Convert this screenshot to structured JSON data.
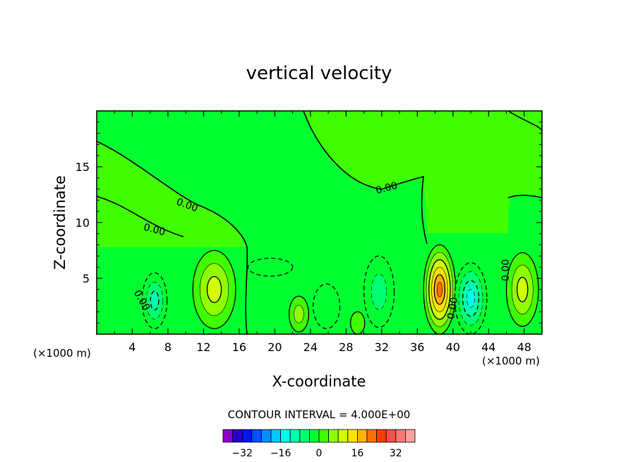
{
  "chart_data": {
    "type": "heatmap",
    "title": "vertical velocity",
    "xlabel": "X-coordinate",
    "ylabel": "Z-coordinate",
    "x_unit_left": "(×1000 m)",
    "x_unit_right": "(×1000 m)",
    "xlim": [
      0,
      50
    ],
    "ylim": [
      0,
      20
    ],
    "x_ticks": [
      "4",
      "8",
      "12",
      "16",
      "20",
      "24",
      "28",
      "32",
      "36",
      "40",
      "44",
      "48"
    ],
    "y_ticks": [
      "5",
      "10",
      "15"
    ],
    "contour_labels": [
      "0.00",
      "0.00",
      "0.00",
      "0.00",
      "0.00",
      "0.00"
    ],
    "contour_interval_text": "CONTOUR INTERVAL = 4.000E+00",
    "colorbar": {
      "colors": [
        "#8a00c8",
        "#2800c8",
        "#0014ff",
        "#0050ff",
        "#0090ff",
        "#00c8ff",
        "#00ffe8",
        "#00ffb0",
        "#00ff70",
        "#00ff30",
        "#40ff00",
        "#90ff00",
        "#d0ff00",
        "#ffe000",
        "#ffb000",
        "#ff7000",
        "#ff3c00",
        "#ff5050",
        "#ff7878",
        "#ffa0a0"
      ],
      "tick_labels": [
        "−32",
        "−16",
        "0",
        "16",
        "32"
      ],
      "tick_values": [
        -32,
        -16,
        0,
        16,
        32
      ],
      "range": [
        -40,
        40
      ]
    },
    "cells": [
      {
        "x": 6.5,
        "z": 3.0,
        "rx": 1.4,
        "rz": 2.5,
        "value": -10
      },
      {
        "x": 13.2,
        "z": 4.0,
        "rx": 2.4,
        "rz": 3.5,
        "value": 12
      },
      {
        "x": 19.5,
        "z": 6.0,
        "rx": 2.5,
        "rz": 0.8,
        "value": -3
      },
      {
        "x": 22.7,
        "z": 1.8,
        "rx": 1.1,
        "rz": 1.6,
        "value": 6
      },
      {
        "x": 25.8,
        "z": 2.5,
        "rx": 1.5,
        "rz": 2.0,
        "value": -5
      },
      {
        "x": 29.3,
        "z": 1.0,
        "rx": 0.8,
        "rz": 1.0,
        "value": 5
      },
      {
        "x": 31.7,
        "z": 3.8,
        "rx": 1.7,
        "rz": 3.2,
        "value": -8
      },
      {
        "x": 38.5,
        "z": 4.0,
        "rx": 1.8,
        "rz": 4.0,
        "value": 22
      },
      {
        "x": 42.0,
        "z": 3.2,
        "rx": 1.8,
        "rz": 3.2,
        "value": -16
      },
      {
        "x": 47.8,
        "z": 4.0,
        "rx": 1.8,
        "rz": 3.3,
        "value": 12
      }
    ]
  }
}
